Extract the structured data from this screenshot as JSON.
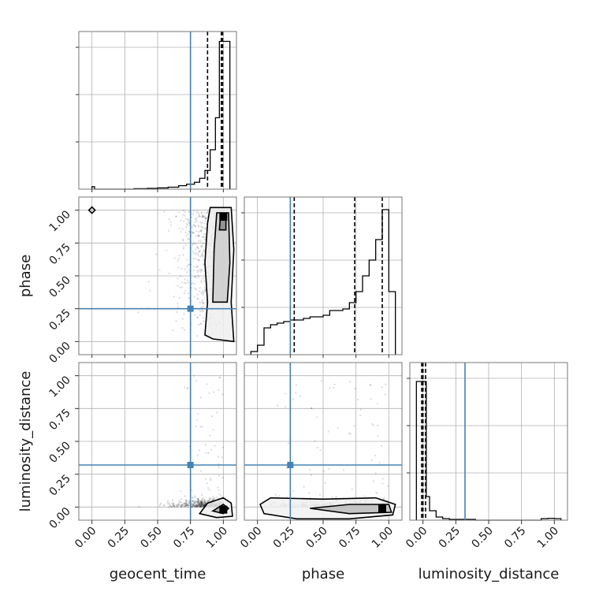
{
  "chart_data": {
    "type": "corner",
    "parameters": [
      "geocent_time",
      "phase",
      "luminosity_distance"
    ],
    "axis_labels": [
      "geocent_time",
      "phase",
      "luminosity_distance"
    ],
    "ticks": {
      "values": [
        0.0,
        0.25,
        0.5,
        0.75,
        1.0
      ],
      "labels": [
        "0.00",
        "0.25",
        "0.50",
        "0.75",
        "1.00"
      ]
    },
    "truths": [
      0.75,
      0.25,
      0.32
    ],
    "truth_color": "#4682b4",
    "line_color": "#000000",
    "grid": true,
    "histograms": [
      {
        "parameter": "geocent_time",
        "xlim": [
          -0.1,
          1.1
        ],
        "ymax": 3.2,
        "step_x": [
          0.0,
          0.02,
          0.32,
          0.42,
          0.5,
          0.58,
          0.66,
          0.72,
          0.78,
          0.82,
          0.86,
          0.9,
          0.94,
          0.97,
          1.0,
          1.05,
          1.05
        ],
        "step_y": [
          0.05,
          0.0,
          0.01,
          0.015,
          0.025,
          0.04,
          0.07,
          0.1,
          0.14,
          0.22,
          0.38,
          0.8,
          1.45,
          3.0,
          3.0,
          0.0
        ],
        "quantiles": [
          0.88,
          0.985,
          0.995
        ]
      },
      {
        "parameter": "phase",
        "xlim": [
          -0.1,
          1.1
        ],
        "ymax": 1.0,
        "step_x": [
          -0.05,
          0.0,
          0.05,
          0.1,
          0.15,
          0.2,
          0.25,
          0.3,
          0.35,
          0.4,
          0.45,
          0.5,
          0.55,
          0.6,
          0.65,
          0.7,
          0.75,
          0.8,
          0.85,
          0.9,
          0.95,
          1.0,
          1.05
        ],
        "step_y": [
          0.02,
          0.06,
          0.17,
          0.19,
          0.2,
          0.21,
          0.22,
          0.22,
          0.23,
          0.24,
          0.24,
          0.25,
          0.28,
          0.28,
          0.29,
          0.33,
          0.4,
          0.5,
          0.6,
          0.73,
          0.92,
          0.4
        ],
        "quantiles": [
          0.28,
          0.74,
          0.95
        ]
      },
      {
        "parameter": "luminosity_distance",
        "xlim": [
          -0.1,
          1.1
        ],
        "ymax": 1.0,
        "step_x": [
          -0.05,
          0.0,
          0.025,
          0.05,
          0.1,
          0.15,
          0.2,
          0.3,
          0.4,
          0.5,
          0.6,
          0.7,
          0.8,
          0.9,
          0.95,
          1.0,
          1.05
        ],
        "step_y": [
          0.88,
          0.88,
          0.15,
          0.06,
          0.02,
          0.01,
          0.005,
          0.005,
          0.0,
          0.0,
          0.0,
          0.0,
          0.0,
          0.01,
          0.012,
          0.01
        ],
        "quantiles": [
          -0.01,
          0.0,
          0.02
        ]
      }
    ],
    "pairs": [
      {
        "x": "geocent_time",
        "y": "phase",
        "mode": [
          1.0,
          0.95
        ]
      },
      {
        "x": "geocent_time",
        "y": "luminosity_distance",
        "mode": [
          1.0,
          -0.02
        ]
      },
      {
        "x": "phase",
        "y": "luminosity_distance",
        "mode": [
          0.95,
          -0.01
        ]
      }
    ]
  }
}
